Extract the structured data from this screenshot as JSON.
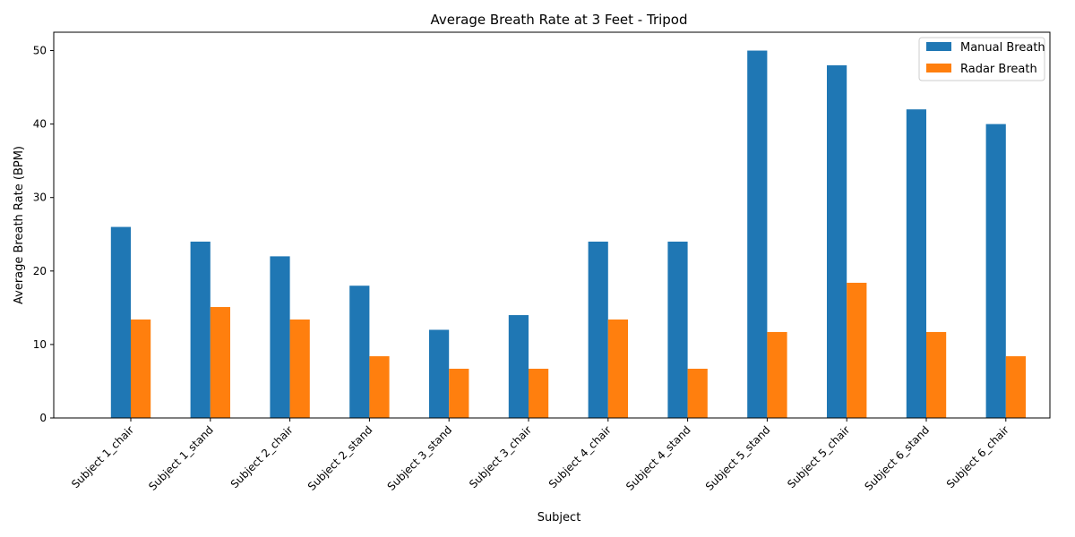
{
  "chart_data": {
    "type": "bar",
    "title": "Average Breath Rate at 3 Feet - Tripod",
    "xlabel": "Subject",
    "ylabel": "Average Breath Rate (BPM)",
    "ylim": [
      0,
      52.5
    ],
    "yticks": [
      0,
      10,
      20,
      30,
      40,
      50
    ],
    "grid": false,
    "legend_position": "top-right",
    "categories": [
      "Subject 1_chair",
      "Subject 1_stand",
      "Subject 2_chair",
      "Subject 2_stand",
      "Subject 3_stand",
      "Subject 3_chair",
      "Subject 4_chair",
      "Subject 4_stand",
      "Subject 5_stand",
      "Subject 5_chair",
      "Subject 6_stand",
      "Subject 6_chair"
    ],
    "series": [
      {
        "name": "Manual Breath",
        "color": "#1f77b4",
        "values": [
          26,
          24,
          22,
          18,
          12,
          14,
          24,
          24,
          50,
          48,
          42,
          40
        ]
      },
      {
        "name": "Radar Breath",
        "color": "#ff7f0e",
        "values": [
          13.4,
          15.1,
          13.4,
          8.4,
          6.7,
          6.7,
          13.4,
          6.7,
          11.7,
          18.4,
          11.7,
          8.4
        ]
      }
    ]
  }
}
